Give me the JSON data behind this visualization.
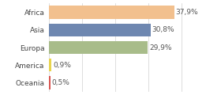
{
  "categories": [
    "Africa",
    "Asia",
    "Europa",
    "America",
    "Oceania"
  ],
  "values": [
    37.9,
    30.8,
    29.9,
    0.9,
    0.5
  ],
  "labels": [
    "37,9%",
    "30,8%",
    "29,9%",
    "0,9%",
    "0,5%"
  ],
  "bar_colors": [
    "#f2c08e",
    "#6e87b0",
    "#a8bc8a",
    "#e8d44d",
    "#d9534f"
  ],
  "xlim": [
    0,
    44
  ],
  "background_color": "#ffffff",
  "label_fontsize": 6.5,
  "tick_fontsize": 6.5,
  "grid_x": [
    0,
    10,
    20,
    30,
    40
  ]
}
